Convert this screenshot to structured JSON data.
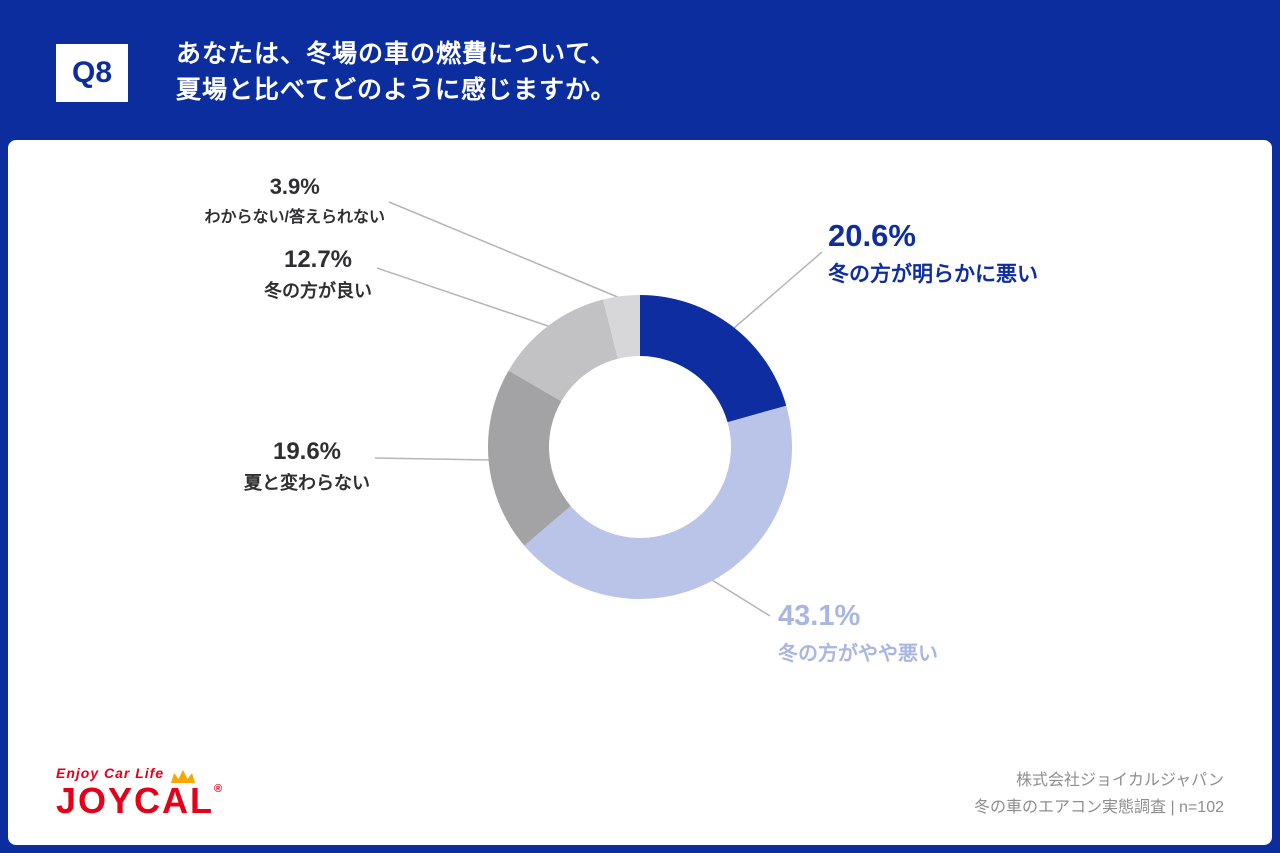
{
  "header": {
    "question_number": "Q8",
    "title_line1": "あなたは、冬場の車の燃費について、",
    "title_line2": "夏場と比べてどのように感じますか。"
  },
  "chart_data": {
    "type": "pie",
    "subtype": "donut",
    "title": "冬場の車の燃費について、夏場と比べてどのように感じるか",
    "start_angle_deg": 0,
    "direction": "clockwise",
    "inner_radius_ratio": 0.6,
    "legend_position": "callouts",
    "segments": [
      {
        "label": "冬の方が明らかに悪い",
        "value": 20.6,
        "percent_label": "20.6%",
        "color": "#0d2da1",
        "text_color": "#0d2da1"
      },
      {
        "label": "冬の方がやや悪い",
        "value": 43.1,
        "percent_label": "43.1%",
        "color": "#bac4e9",
        "text_color": "#a9b6e2"
      },
      {
        "label": "夏と変わらない",
        "value": 19.6,
        "percent_label": "19.6%",
        "color": "#a3a3a5",
        "text_color": "#2f2f31"
      },
      {
        "label": "冬の方が良い",
        "value": 12.7,
        "percent_label": "12.7%",
        "color": "#c2c2c4",
        "text_color": "#2f2f31"
      },
      {
        "label": "わからない/答えられない",
        "value": 3.9,
        "percent_label": "3.9%",
        "color": "#d7d7d9",
        "text_color": "#2f2f31"
      }
    ]
  },
  "footer": {
    "logo": {
      "tagline": "Enjoy Car Life",
      "brand": "JOYCAL",
      "registered": "®"
    },
    "credit_line1": "株式会社ジョイカルジャパン",
    "credit_line2": "冬の車のエアコン実態調査 | n=102"
  }
}
